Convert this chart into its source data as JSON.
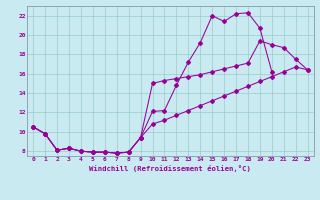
{
  "bg_color": "#c8eaf0",
  "line_color": "#990099",
  "grid_color": "#99cccc",
  "xlabel": "Windchill (Refroidissement éolien,°C)",
  "xlim": [
    -0.5,
    23.5
  ],
  "ylim": [
    7.5,
    23.0
  ],
  "xticks": [
    0,
    1,
    2,
    3,
    4,
    5,
    6,
    7,
    8,
    9,
    10,
    11,
    12,
    13,
    14,
    15,
    16,
    17,
    18,
    19,
    20,
    21,
    22,
    23
  ],
  "yticks": [
    8,
    10,
    12,
    14,
    16,
    18,
    20,
    22
  ],
  "curve1_x": [
    0,
    1,
    2,
    3,
    4,
    5,
    6,
    7,
    8,
    9,
    10,
    11,
    12,
    13,
    14,
    15,
    16,
    17,
    18,
    19,
    20
  ],
  "curve1_y": [
    10.5,
    9.8,
    8.1,
    8.3,
    8.0,
    7.9,
    7.9,
    7.8,
    7.9,
    9.4,
    12.1,
    12.2,
    14.8,
    17.2,
    19.2,
    22.0,
    21.4,
    22.2,
    22.3,
    20.7,
    16.2
  ],
  "curve2_x": [
    0,
    1,
    2,
    3,
    4,
    5,
    6,
    7,
    8,
    9,
    10,
    11,
    12,
    13,
    14,
    15,
    16,
    17,
    18,
    19,
    20,
    21,
    22,
    23
  ],
  "curve2_y": [
    10.5,
    9.8,
    8.1,
    8.3,
    8.0,
    7.9,
    7.9,
    7.8,
    7.9,
    9.4,
    15.0,
    15.3,
    15.5,
    15.7,
    15.9,
    16.2,
    16.5,
    16.8,
    17.1,
    19.4,
    19.0,
    18.7,
    17.5,
    16.4
  ],
  "curve3_x": [
    0,
    1,
    2,
    3,
    4,
    5,
    6,
    7,
    8,
    9,
    10,
    11,
    12,
    13,
    14,
    15,
    16,
    17,
    18,
    19,
    20,
    21,
    22,
    23
  ],
  "curve3_y": [
    10.5,
    9.8,
    8.1,
    8.3,
    8.0,
    7.9,
    7.9,
    7.8,
    7.9,
    9.4,
    10.8,
    11.2,
    11.7,
    12.2,
    12.7,
    13.2,
    13.7,
    14.2,
    14.7,
    15.2,
    15.7,
    16.2,
    16.7,
    16.4
  ]
}
